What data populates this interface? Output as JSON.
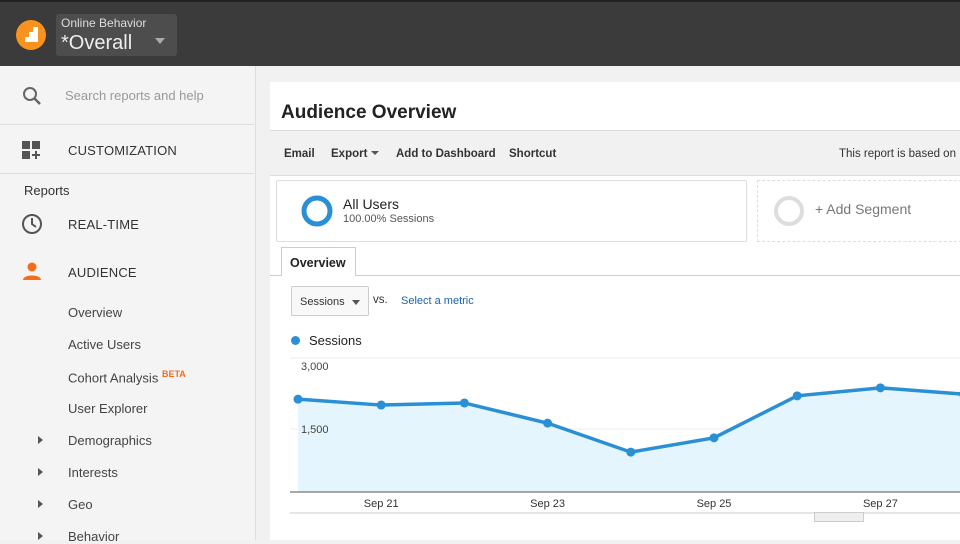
{
  "header": {
    "account_label": "Online Behavior",
    "view_name": "*Overall"
  },
  "sidebar": {
    "search_placeholder": "Search reports and help",
    "customization": "CUSTOMIZATION",
    "reports_label": "Reports",
    "realtime": "REAL-TIME",
    "audience": "AUDIENCE",
    "audience_items": [
      {
        "label": "Overview"
      },
      {
        "label": "Active Users"
      },
      {
        "label": "Cohort Analysis",
        "badge": "BETA"
      },
      {
        "label": "User Explorer"
      },
      {
        "label": "Demographics"
      },
      {
        "label": "Interests"
      },
      {
        "label": "Geo"
      },
      {
        "label": "Behavior"
      }
    ],
    "accent": "#f76c1a"
  },
  "main": {
    "title": "Audience Overview",
    "toolbar": {
      "email": "Email",
      "export": "Export",
      "add_dashboard": "Add to Dashboard",
      "shortcut": "Shortcut",
      "note": "This report is based on"
    },
    "segment": {
      "name": "All Users",
      "detail": "100.00% Sessions",
      "add": "+ Add Segment"
    },
    "tab": "Overview",
    "metric_select": "Sessions",
    "vs": "vs.",
    "select_metric": "Select a metric"
  },
  "chart_data": {
    "type": "area",
    "legend": "Sessions",
    "color": "#2a8fd4",
    "x": [
      "Sep 20",
      "Sep 21",
      "Sep 22",
      "Sep 23",
      "Sep 24",
      "Sep 25",
      "Sep 26",
      "Sep 27",
      "Sep 28"
    ],
    "values": [
      2210,
      2070,
      2120,
      1640,
      950,
      1290,
      2290,
      2480,
      2330
    ],
    "x_tick_labels": [
      "Sep 21",
      "Sep 23",
      "Sep 25",
      "Sep 27"
    ],
    "y_tick_labels": [
      "3,000",
      "1,500"
    ],
    "ylim": [
      0,
      3000
    ],
    "grid": true
  }
}
